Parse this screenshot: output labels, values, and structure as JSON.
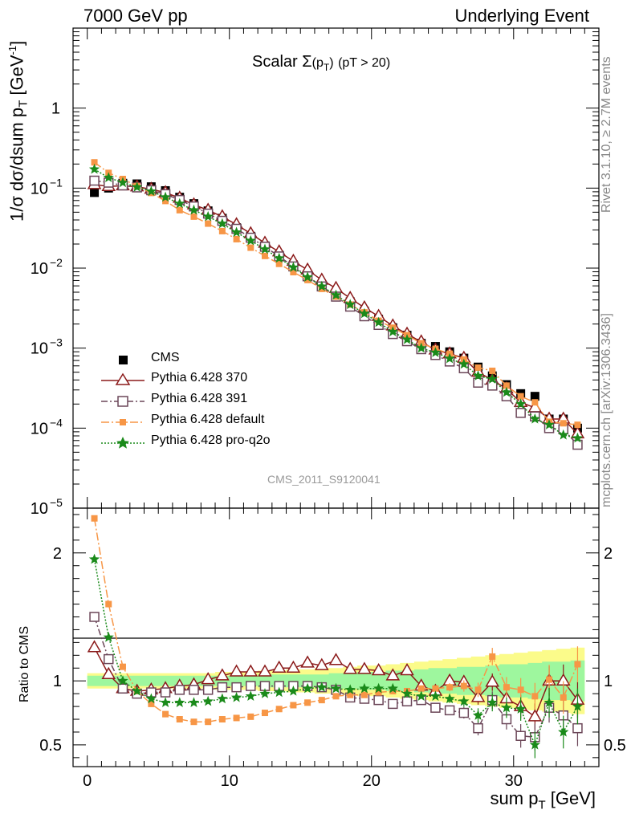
{
  "header": {
    "left": "7000 GeV pp",
    "right": "Underlying Event"
  },
  "side_text": {
    "top": "Rivet 3.1.10, ≥ 2.7M events",
    "bottom": "mcplots.cern.ch [arXiv:1306.3436]"
  },
  "plot_title": {
    "main": "Scalar Σ",
    "sub": "(p",
    "subT": "T",
    "close": ")",
    "cut": "(pT > 20)"
  },
  "analysis_label": "CMS_2011_S9120041",
  "ytitle_main": "1/σ dσ/dsum p",
  "ytitle_main_sub": "T",
  "ytitle_main_unit": "[GeV",
  "ytitle_main_sup": "-1",
  "ytitle_main_close": "]",
  "ytitle_ratio": "Ratio to CMS",
  "xtitle": "sum p",
  "xtitle_sub": "T",
  "xtitle_unit": "[GeV]",
  "legend": [
    {
      "key": "cms",
      "label": "CMS"
    },
    {
      "key": "p370",
      "label": "Pythia 6.428 370"
    },
    {
      "key": "p391",
      "label": "Pythia 6.428 391"
    },
    {
      "key": "pdef",
      "label": "Pythia 6.428 default"
    },
    {
      "key": "pq2o",
      "label": "Pythia 6.428 pro-q2o"
    }
  ],
  "colors": {
    "cms": "#000000",
    "p370": "#8b1a1a",
    "p391": "#6b4658",
    "pdef": "#f79646",
    "pq2o": "#1a8a1a",
    "band_inner": "#9ef79e",
    "band_outer": "#fbfb8a"
  },
  "chart_data": {
    "type": "scatter",
    "main_panel": {
      "yscale": "log",
      "ylim": [
        1e-05,
        10
      ],
      "xlim": [
        -1,
        36
      ],
      "yticks": [
        {
          "v": 1e-05,
          "base": "10",
          "exp": "−5"
        },
        {
          "v": 0.0001,
          "base": "10",
          "exp": "−4"
        },
        {
          "v": 0.001,
          "base": "10",
          "exp": "−3"
        },
        {
          "v": 0.01,
          "base": "10",
          "exp": "−2"
        },
        {
          "v": 0.1,
          "base": "10",
          "exp": "−1"
        },
        {
          "v": 1,
          "base": "1",
          "exp": ""
        }
      ]
    },
    "ratio_panel": {
      "ylim": [
        0.33,
        2.35
      ],
      "yticks": [
        0.5,
        1,
        2
      ],
      "ytick_labels": [
        "0.5",
        "1",
        "2"
      ]
    },
    "xticks": [
      0,
      10,
      20,
      30
    ],
    "x": [
      0.5,
      1.5,
      2.5,
      3.5,
      4.5,
      5.5,
      6.5,
      7.5,
      8.5,
      9.5,
      10.5,
      11.5,
      12.5,
      13.5,
      14.5,
      15.5,
      16.5,
      17.5,
      18.5,
      19.5,
      20.5,
      21.5,
      22.5,
      23.5,
      24.5,
      25.5,
      26.5,
      27.5,
      28.5,
      29.5,
      30.5,
      31.5,
      32.5,
      33.5,
      34.5
    ],
    "series": [
      {
        "key": "cms",
        "name": "CMS",
        "values": [
          0.088,
          0.1,
          0.115,
          0.113,
          0.104,
          0.093,
          0.077,
          0.064,
          0.052,
          0.042,
          0.032,
          0.025,
          0.019,
          0.0145,
          0.011,
          0.0082,
          0.0062,
          0.0048,
          0.0038,
          0.0029,
          0.0023,
          0.0018,
          0.00145,
          0.00115,
          0.00105,
          0.0009,
          0.00075,
          0.00058,
          0.00045,
          0.00035,
          0.00027,
          0.00025,
          0.00013,
          0.00013,
          0.0001
        ]
      },
      {
        "key": "p370",
        "name": "Pythia 6.428 370",
        "values": [
          0.111,
          0.105,
          0.107,
          0.104,
          0.097,
          0.088,
          0.075,
          0.062,
          0.053,
          0.044,
          0.035,
          0.027,
          0.0205,
          0.016,
          0.0122,
          0.0095,
          0.0071,
          0.0056,
          0.0042,
          0.0032,
          0.0025,
          0.0019,
          0.0015,
          0.0012,
          0.00095,
          0.00085,
          0.00075,
          0.0005,
          0.0004,
          0.00031,
          0.00021,
          0.00018,
          0.00013,
          0.00013,
          8.5e-05
        ],
        "ratio": [
          1.26,
          1.05,
          0.94,
          0.92,
          0.93,
          0.94,
          0.96,
          0.97,
          1.01,
          1.04,
          1.07,
          1.07,
          1.07,
          1.1,
          1.1,
          1.14,
          1.12,
          1.16,
          1.09,
          1.09,
          1.08,
          1.04,
          1.08,
          0.96,
          0.92,
          1.0,
          0.99,
          0.87,
          0.99,
          0.86,
          0.8,
          0.72,
          1.0,
          1.0,
          0.85
        ]
      },
      {
        "key": "p391",
        "name": "Pythia 6.428 391",
        "values": [
          0.124,
          0.117,
          0.108,
          0.102,
          0.094,
          0.084,
          0.071,
          0.059,
          0.048,
          0.039,
          0.031,
          0.024,
          0.0185,
          0.014,
          0.0105,
          0.0079,
          0.0059,
          0.0044,
          0.0033,
          0.0025,
          0.00195,
          0.0015,
          0.00122,
          0.00097,
          0.00082,
          0.00068,
          0.00056,
          0.00037,
          0.00034,
          0.00025,
          0.000155,
          0.00014,
          0.0001,
          9.7e-05,
          6.2e-05
        ],
        "ratio": [
          1.5,
          1.17,
          0.94,
          0.9,
          0.91,
          0.91,
          0.93,
          0.93,
          0.93,
          0.95,
          0.95,
          0.96,
          0.96,
          0.96,
          0.96,
          0.96,
          0.95,
          0.93,
          0.87,
          0.86,
          0.85,
          0.82,
          0.84,
          0.85,
          0.79,
          0.77,
          0.75,
          0.63,
          0.85,
          0.7,
          0.57,
          0.56,
          0.79,
          0.73,
          0.63
        ]
      },
      {
        "key": "pdef",
        "name": "Pythia 6.428 default",
        "values": [
          0.21,
          0.155,
          0.13,
          0.106,
          0.087,
          0.069,
          0.053,
          0.044,
          0.036,
          0.029,
          0.023,
          0.018,
          0.0142,
          0.0113,
          0.0089,
          0.0071,
          0.0055,
          0.0044,
          0.0035,
          0.0028,
          0.0022,
          0.0018,
          0.00145,
          0.00115,
          0.00098,
          0.00085,
          0.00072,
          0.00057,
          0.00052,
          0.00034,
          0.00025,
          0.00021,
          0.00012,
          0.000115,
          0.00011
        ],
        "ratio": [
          2.27,
          1.6,
          1.11,
          0.92,
          0.82,
          0.74,
          0.7,
          0.68,
          0.68,
          0.7,
          0.71,
          0.72,
          0.75,
          0.78,
          0.81,
          0.83,
          0.85,
          0.88,
          0.89,
          0.89,
          0.91,
          0.92,
          0.92,
          0.94,
          0.94,
          0.95,
          0.96,
          0.93,
          1.19,
          0.95,
          0.93,
          0.88,
          1.01,
          0.87,
          1.13
        ]
      },
      {
        "key": "pq2o",
        "name": "Pythia 6.428 pro-q2o",
        "values": [
          0.172,
          0.135,
          0.117,
          0.103,
          0.091,
          0.077,
          0.064,
          0.053,
          0.044,
          0.036,
          0.028,
          0.022,
          0.0172,
          0.0133,
          0.0102,
          0.0077,
          0.0059,
          0.0046,
          0.0035,
          0.0027,
          0.0021,
          0.0016,
          0.00128,
          0.001,
          0.00088,
          0.00074,
          0.00063,
          0.00045,
          0.00041,
          0.00028,
          0.0002,
          0.00013,
          0.00011,
          8.2e-05,
          7.5e-05
        ],
        "ratio": [
          1.95,
          1.34,
          1.0,
          0.92,
          0.86,
          0.83,
          0.83,
          0.83,
          0.84,
          0.86,
          0.87,
          0.88,
          0.9,
          0.91,
          0.92,
          0.94,
          0.95,
          0.94,
          0.93,
          0.94,
          0.94,
          0.94,
          0.9,
          0.88,
          0.88,
          0.86,
          0.84,
          0.73,
          0.83,
          0.79,
          0.78,
          0.5,
          0.83,
          0.6,
          0.8
        ]
      }
    ],
    "cms_uncertainty_band": {
      "inner_half_width": [
        0.04,
        0.04,
        0.04,
        0.04,
        0.04,
        0.04,
        0.04,
        0.04,
        0.04,
        0.04,
        0.04,
        0.04,
        0.05,
        0.05,
        0.05,
        0.05,
        0.05,
        0.06,
        0.06,
        0.07,
        0.07,
        0.08,
        0.08,
        0.09,
        0.1,
        0.1,
        0.11,
        0.11,
        0.12,
        0.13,
        0.13,
        0.14,
        0.15,
        0.15,
        0.16
      ],
      "outer_half_width": [
        0.06,
        0.06,
        0.06,
        0.06,
        0.06,
        0.06,
        0.06,
        0.06,
        0.06,
        0.07,
        0.07,
        0.07,
        0.08,
        0.08,
        0.09,
        0.09,
        0.1,
        0.1,
        0.11,
        0.12,
        0.12,
        0.13,
        0.14,
        0.15,
        0.16,
        0.17,
        0.18,
        0.19,
        0.2,
        0.21,
        0.22,
        0.23,
        0.24,
        0.25,
        0.26
      ]
    }
  }
}
